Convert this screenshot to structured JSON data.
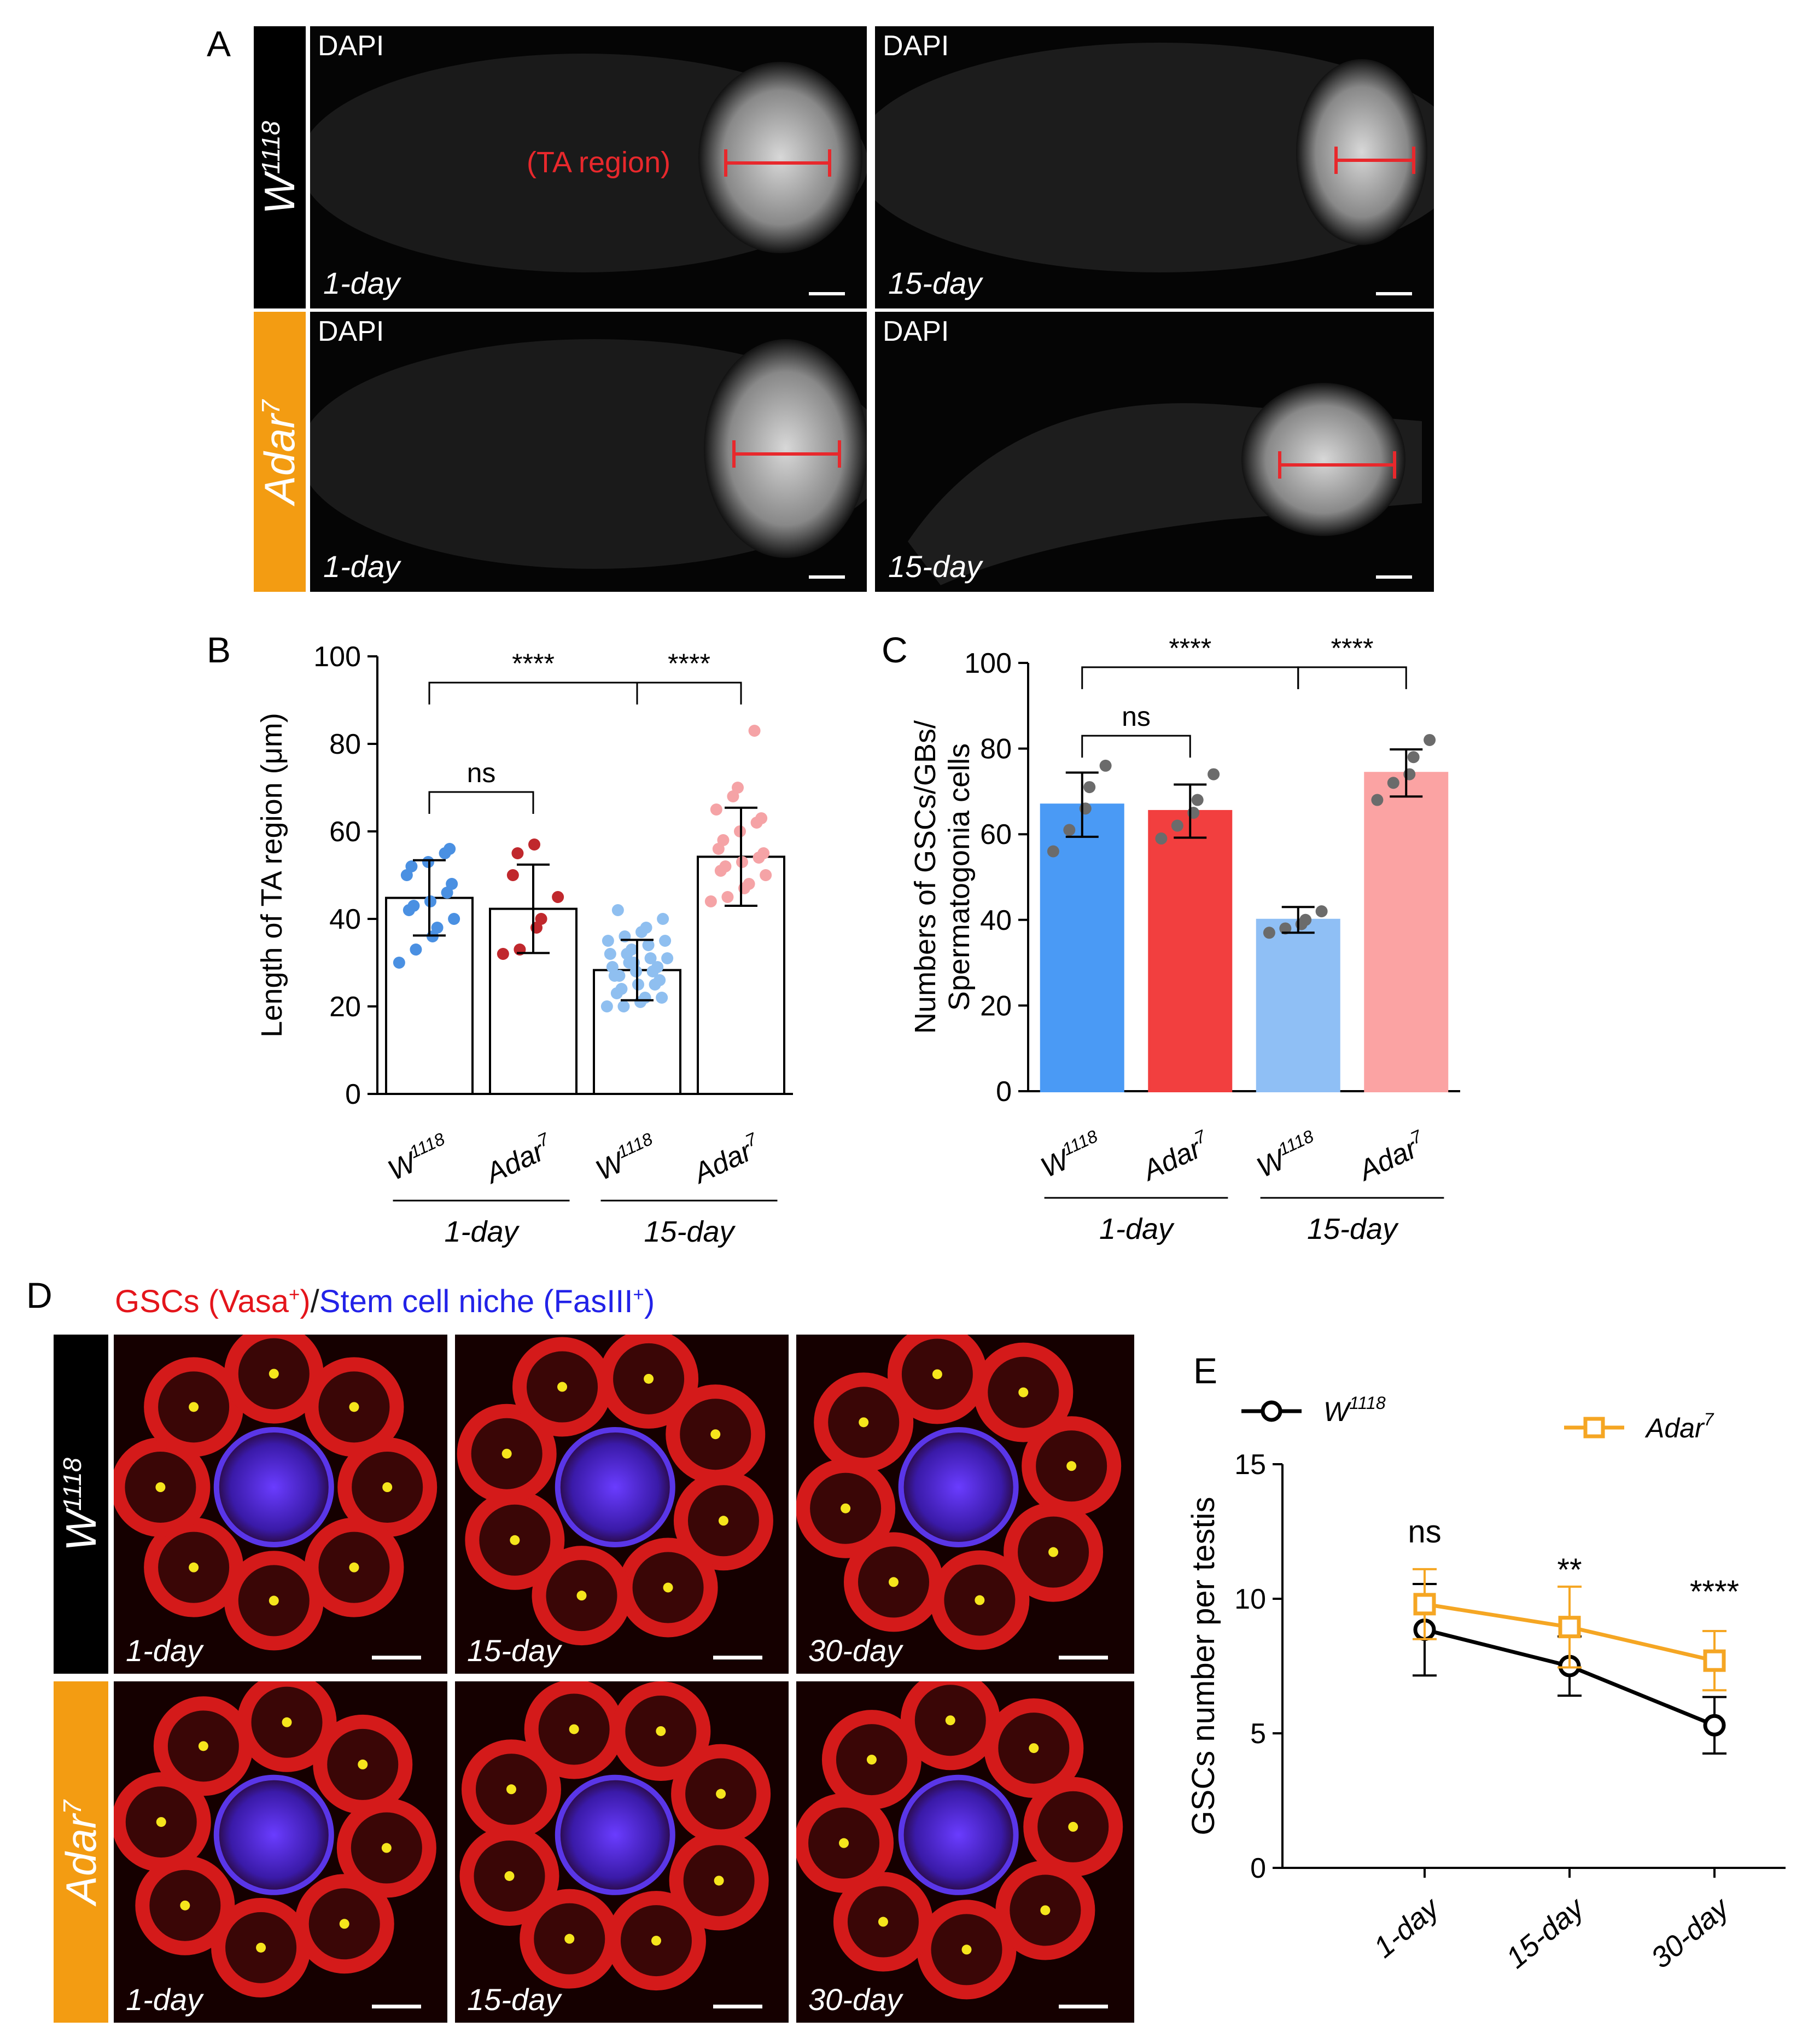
{
  "panel_a": {
    "letter": "A",
    "rows": [
      {
        "label": "W",
        "sup": "1118",
        "color": "#000000"
      },
      {
        "label": "Adar",
        "sup": "7",
        "color": "#f39c12"
      }
    ],
    "stain": "DAPI",
    "ta_label": "(TA region)",
    "days": [
      "1-day",
      "15-day",
      "1-day",
      "15-day"
    ]
  },
  "panel_b": {
    "letter": "B"
  },
  "panel_c": {
    "letter": "C"
  },
  "panel_d": {
    "letter": "D",
    "title_red": "GSCs (Vasa",
    "title_red_sup": "+",
    "title_sep": ")/",
    "title_blue": "Stem cell niche (FasIII",
    "title_blue_sup": "+",
    "title_blue_end": ")",
    "rows": [
      {
        "label": "W",
        "sup": "1118",
        "color": "#000000"
      },
      {
        "label": "Adar",
        "sup": "7",
        "color": "#f39c12"
      }
    ],
    "days": [
      "1-day",
      "15-day",
      "30-day",
      "1-day",
      "15-day",
      "30-day"
    ]
  },
  "panel_e": {
    "letter": "E"
  },
  "chart_data": [
    {
      "type": "bar",
      "panel": "B",
      "ylabel": "Length of TA region (μm)",
      "ylim": [
        0,
        100
      ],
      "yticks": [
        0,
        20,
        40,
        60,
        80,
        100
      ],
      "categories": [
        "W1118",
        "Adar7",
        "W1118",
        "Adar7"
      ],
      "category_labels": [
        {
          "base": "W",
          "sup": "1118"
        },
        {
          "base": "Adar",
          "sup": "7"
        },
        {
          "base": "W",
          "sup": "1118"
        },
        {
          "base": "Adar",
          "sup": "7"
        }
      ],
      "groups": [
        "1-day",
        "15-day"
      ],
      "means": [
        44.8,
        42.3,
        28.3,
        54.2
      ],
      "sd": [
        8.6,
        10.1,
        6.9,
        11.2
      ],
      "bar_fill": [
        "#ffffff",
        "#ffffff",
        "#ffffff",
        "#ffffff"
      ],
      "dot_colors": [
        "#4a90e2",
        "#c0282d",
        "#8fbff0",
        "#f5a3a6"
      ],
      "points": [
        [
          30,
          33,
          36,
          38,
          40,
          42,
          43,
          44,
          46,
          48,
          50,
          52,
          53,
          55,
          56
        ],
        [
          32,
          33,
          38,
          40,
          45,
          50,
          55,
          57
        ],
        [
          20,
          20,
          21,
          22,
          22,
          23,
          24,
          25,
          25,
          26,
          27,
          27,
          28,
          28,
          29,
          29,
          30,
          30,
          31,
          31,
          32,
          32,
          33,
          34,
          35,
          35,
          36,
          37,
          38,
          40,
          42
        ],
        [
          44,
          45,
          47,
          48,
          50,
          51,
          52,
          53,
          54,
          55,
          56,
          58,
          60,
          62,
          63,
          65,
          68,
          70,
          83
        ]
      ],
      "comparisons": [
        {
          "from": 0,
          "to": 1,
          "label": "ns"
        },
        {
          "from": 0,
          "to": 2,
          "label": "****"
        },
        {
          "from": 2,
          "to": 3,
          "label": "****"
        }
      ]
    },
    {
      "type": "bar",
      "panel": "C",
      "ylabel": "Numbers of GSCs/GBs/ Spermatogonia cells",
      "ylabel_lines": [
        "Numbers of GSCs/GBs/",
        "Spermatogonia cells"
      ],
      "ylim": [
        0,
        100
      ],
      "yticks": [
        0,
        20,
        40,
        60,
        80,
        100
      ],
      "categories": [
        "W1118",
        "Adar7",
        "W1118",
        "Adar7"
      ],
      "category_labels": [
        {
          "base": "W",
          "sup": "1118"
        },
        {
          "base": "Adar",
          "sup": "7"
        },
        {
          "base": "W",
          "sup": "1118"
        },
        {
          "base": "Adar",
          "sup": "7"
        }
      ],
      "groups": [
        "1-day",
        "15-day"
      ],
      "means": [
        66.9,
        65.4,
        40.0,
        74.3
      ],
      "sd": [
        7.5,
        6.2,
        3.0,
        5.5
      ],
      "bar_fill": [
        "#4a9af5",
        "#f23f3f",
        "#8fbff5",
        "#fba3a3"
      ],
      "points": [
        [
          56,
          61,
          66,
          71,
          76
        ],
        [
          59,
          62,
          65,
          68,
          74
        ],
        [
          37,
          38,
          39,
          40,
          42
        ],
        [
          68,
          72,
          74,
          78,
          82
        ]
      ],
      "comparisons": [
        {
          "from": 0,
          "to": 1,
          "label": "ns"
        },
        {
          "from": 0,
          "to": 2,
          "label": "****"
        },
        {
          "from": 2,
          "to": 3,
          "label": "****"
        }
      ]
    },
    {
      "type": "line",
      "panel": "E",
      "ylabel": "GSCs number per testis",
      "ylim": [
        0,
        15
      ],
      "yticks": [
        0,
        5,
        10,
        15
      ],
      "x": [
        "1-day",
        "15-day",
        "30-day"
      ],
      "series": [
        {
          "name": "W1118",
          "base": "W",
          "sup": "1118",
          "color": "#000000",
          "marker": "circle",
          "values": [
            8.85,
            7.5,
            5.3
          ],
          "sd": [
            1.7,
            1.1,
            1.05
          ]
        },
        {
          "name": "Adar7",
          "base": "Adar",
          "sup": "7",
          "color": "#f5a623",
          "marker": "square",
          "values": [
            9.8,
            8.95,
            7.7
          ],
          "sd": [
            1.3,
            1.5,
            1.1
          ]
        }
      ],
      "annotations": [
        "ns",
        "**",
        "****"
      ]
    }
  ]
}
